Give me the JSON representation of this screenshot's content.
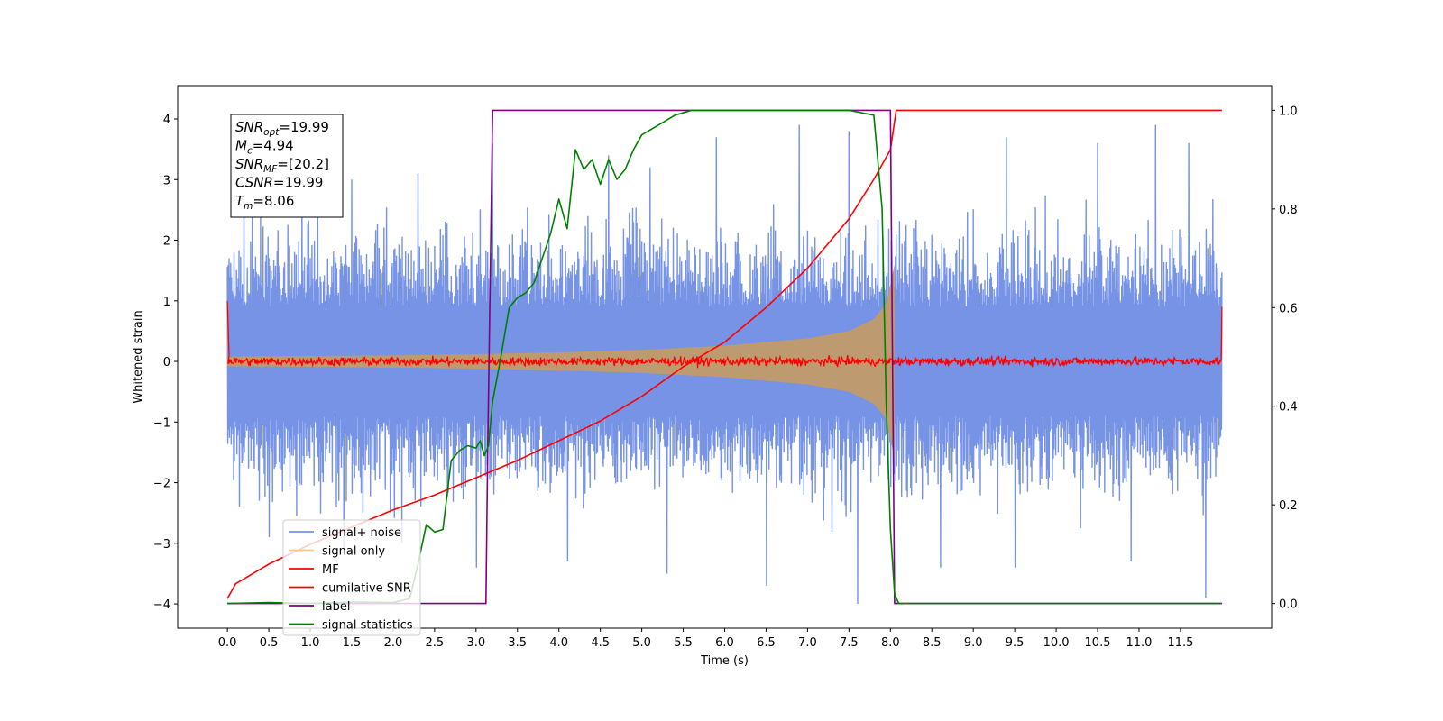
{
  "chart_data": {
    "type": "line",
    "title": "",
    "xlabel": "Time (s)",
    "ylabel": "Whitened strain",
    "xlim": [
      -0.6,
      12.6
    ],
    "ylim_left": [
      -4.4,
      4.55
    ],
    "ylim_right": [
      -0.05,
      1.05
    ],
    "x_ticks": [
      "0.0",
      "0.5",
      "1.0",
      "1.5",
      "2.0",
      "2.5",
      "3.0",
      "3.5",
      "4.0",
      "4.5",
      "5.0",
      "5.5",
      "6.0",
      "6.5",
      "7.0",
      "7.5",
      "8.0",
      "8.5",
      "9.0",
      "9.5",
      "10.0",
      "10.5",
      "11.0",
      "11.5"
    ],
    "x_tick_values": [
      0.0,
      0.5,
      1.0,
      1.5,
      2.0,
      2.5,
      3.0,
      3.5,
      4.0,
      4.5,
      5.0,
      5.5,
      6.0,
      6.5,
      7.0,
      7.5,
      8.0,
      8.5,
      9.0,
      9.5,
      10.0,
      10.5,
      11.0,
      11.5
    ],
    "y_ticks_left": [
      "−4",
      "−3",
      "−2",
      "−1",
      "0",
      "1",
      "2",
      "3",
      "4"
    ],
    "y_tick_values_left": [
      -4,
      -3,
      -2,
      -1,
      0,
      1,
      2,
      3,
      4
    ],
    "y_ticks_right": [
      "0.0",
      "0.2",
      "0.4",
      "0.6",
      "0.8",
      "1.0"
    ],
    "y_tick_values_right": [
      0.0,
      0.2,
      0.4,
      0.6,
      0.8,
      1.0
    ],
    "grid": false,
    "legend_position": "lower-left",
    "annotation": [
      {
        "main": "SNR",
        "sub": "opt",
        "value": "=19.99"
      },
      {
        "main": "M",
        "sub": "c",
        "value": "=4.94"
      },
      {
        "main": "SNR",
        "sub": "MF",
        "value": "=[20.2]"
      },
      {
        "main": "CSNR",
        "sub": "",
        "value": "=19.99"
      },
      {
        "main": "T",
        "sub": "m",
        "value": "=8.06"
      }
    ],
    "series": [
      {
        "name": "signal+ noise",
        "color": "#7693e6",
        "axis": "left",
        "x_range": [
          0.0,
          12.0
        ],
        "envelope_upper": 1.5,
        "envelope_lower": -1.5,
        "peaks": [
          [
            0.3,
            2.6
          ],
          [
            0.9,
            2.9
          ],
          [
            1.5,
            3.0
          ],
          [
            2.3,
            3.1
          ],
          [
            3.2,
            3.6
          ],
          [
            4.6,
            3.4
          ],
          [
            5.1,
            3.2
          ],
          [
            5.9,
            3.7
          ],
          [
            6.9,
            3.9
          ],
          [
            7.5,
            3.8
          ],
          [
            9.4,
            3.7
          ],
          [
            10.5,
            3.6
          ],
          [
            11.2,
            3.9
          ],
          [
            11.6,
            3.6
          ]
        ],
        "troughs": [
          [
            0.5,
            -2.9
          ],
          [
            1.4,
            -3.1
          ],
          [
            2.1,
            -3.0
          ],
          [
            3.0,
            -3.4
          ],
          [
            4.1,
            -3.3
          ],
          [
            5.3,
            -3.5
          ],
          [
            6.5,
            -3.7
          ],
          [
            7.6,
            -4.0
          ],
          [
            8.6,
            -3.4
          ],
          [
            9.5,
            -3.4
          ],
          [
            10.9,
            -3.3
          ],
          [
            11.8,
            -3.9
          ]
        ]
      },
      {
        "name": "signal only",
        "color": "#bd9a70",
        "axis": "left",
        "amplitude_x": [
          0.0,
          1.0,
          2.0,
          3.0,
          4.0,
          5.0,
          6.0,
          7.0,
          7.5,
          7.8,
          7.95,
          8.05
        ],
        "amplitude_y": [
          0.08,
          0.09,
          0.1,
          0.12,
          0.15,
          0.19,
          0.26,
          0.38,
          0.5,
          0.7,
          0.95,
          1.6
        ]
      },
      {
        "name": "MF",
        "color": "#ff0000",
        "axis": "left",
        "x_range": [
          0.0,
          12.0
        ],
        "mean": 0.0,
        "jitter": 0.07,
        "start_value": 1.0,
        "end_value": 0.9
      },
      {
        "name": "cumilative SNR",
        "color": "#ff0000",
        "axis": "right",
        "x": [
          0.0,
          0.1,
          0.5,
          1.0,
          1.5,
          2.0,
          2.5,
          3.0,
          3.5,
          4.0,
          4.5,
          5.0,
          5.5,
          6.0,
          6.5,
          7.0,
          7.5,
          7.8,
          8.0,
          8.07,
          12.0
        ],
        "y": [
          0.01,
          0.04,
          0.08,
          0.12,
          0.155,
          0.19,
          0.22,
          0.255,
          0.29,
          0.33,
          0.37,
          0.42,
          0.48,
          0.53,
          0.6,
          0.68,
          0.78,
          0.86,
          0.92,
          1.0,
          1.0
        ]
      },
      {
        "name": "label",
        "color": "#800080",
        "axis": "right",
        "x": [
          0.0,
          3.12,
          3.14,
          3.2,
          8.0,
          8.05,
          12.0
        ],
        "y": [
          0.0,
          0.0,
          0.3,
          1.0,
          1.0,
          0.0,
          0.0
        ]
      },
      {
        "name": "signal statistics",
        "color": "#008000",
        "axis": "right",
        "x": [
          0.0,
          0.5,
          1.0,
          1.5,
          2.0,
          2.2,
          2.3,
          2.4,
          2.5,
          2.6,
          2.7,
          2.8,
          2.9,
          3.0,
          3.05,
          3.1,
          3.15,
          3.2,
          3.3,
          3.4,
          3.5,
          3.6,
          3.7,
          3.8,
          3.9,
          4.0,
          4.1,
          4.2,
          4.3,
          4.4,
          4.5,
          4.6,
          4.7,
          4.8,
          4.9,
          5.0,
          5.2,
          5.4,
          5.6,
          5.8,
          6.0,
          6.5,
          7.0,
          7.5,
          7.8,
          7.9,
          7.95,
          8.0,
          8.05,
          8.1,
          8.2,
          12.0
        ],
        "y": [
          0.0,
          0.002,
          0.0,
          0.003,
          0.002,
          0.01,
          0.08,
          0.16,
          0.145,
          0.15,
          0.29,
          0.31,
          0.32,
          0.315,
          0.33,
          0.3,
          0.32,
          0.41,
          0.5,
          0.6,
          0.62,
          0.63,
          0.65,
          0.7,
          0.75,
          0.82,
          0.76,
          0.92,
          0.88,
          0.9,
          0.85,
          0.9,
          0.86,
          0.88,
          0.92,
          0.95,
          0.97,
          0.99,
          1.0,
          1.0,
          1.0,
          1.0,
          1.0,
          1.0,
          0.99,
          0.8,
          0.4,
          0.15,
          0.02,
          0.0,
          0.0,
          0.0
        ]
      }
    ]
  }
}
